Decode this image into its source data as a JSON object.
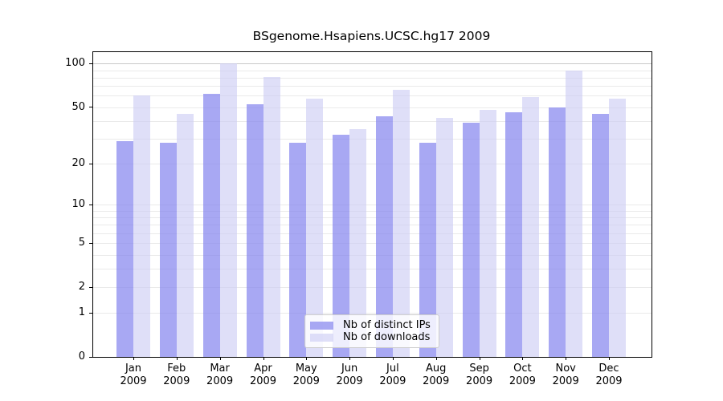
{
  "chart_data": {
    "type": "bar",
    "title": "BSgenome.Hsapiens.UCSC.hg17 2009",
    "categories": [
      "Jan",
      "Feb",
      "Mar",
      "Apr",
      "May",
      "Jun",
      "Jul",
      "Aug",
      "Sep",
      "Oct",
      "Nov",
      "Dec"
    ],
    "year": "2009",
    "series": [
      {
        "name": "Nb of distinct IPs",
        "color": "rgba(136,136,238,0.73)",
        "values": [
          29,
          28,
          62,
          52,
          28,
          32,
          43,
          28,
          39,
          46,
          50,
          45
        ]
      },
      {
        "name": "Nb of downloads",
        "color": "rgba(204,204,244,0.62)",
        "values": [
          60,
          45,
          100,
          81,
          57,
          35,
          66,
          42,
          48,
          59,
          90,
          57
        ]
      }
    ],
    "yticks": [
      0,
      1,
      2,
      5,
      10,
      20,
      50,
      100
    ],
    "scale": "log1p",
    "ylim": [
      0,
      120
    ],
    "grid": true,
    "gridline_color": "#eaeaea",
    "gridline_top_color": "#c9c9c9",
    "legend_position": "lower center"
  }
}
